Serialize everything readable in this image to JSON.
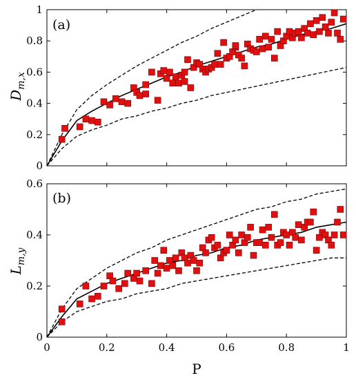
{
  "chart_data": [
    {
      "type": "scatter",
      "panel_label": "(a)",
      "ylabel": "D_{m,x}",
      "ylabel_main": "D",
      "ylabel_sub": "m,x",
      "xlim": [
        0,
        1
      ],
      "ylim": [
        0,
        1
      ],
      "x_ticks": [
        "0",
        "0.2",
        "0.4",
        "0.6",
        "0.8",
        "1"
      ],
      "y_ticks": [
        "0",
        "0.2",
        "0.4",
        "0.6",
        "0.8",
        "1"
      ],
      "x_tick_values": [
        0,
        0.2,
        0.4,
        0.6,
        0.8,
        1
      ],
      "y_tick_values": [
        0,
        0.2,
        0.4,
        0.6,
        0.8,
        1
      ],
      "show_x_tick_labels": false,
      "grid": false,
      "marker_color": "#e01010",
      "points": {
        "x": [
          0.05,
          0.06,
          0.11,
          0.13,
          0.15,
          0.17,
          0.19,
          0.21,
          0.23,
          0.25,
          0.27,
          0.29,
          0.3,
          0.31,
          0.33,
          0.33,
          0.35,
          0.37,
          0.38,
          0.39,
          0.4,
          0.41,
          0.42,
          0.43,
          0.44,
          0.45,
          0.46,
          0.46,
          0.47,
          0.48,
          0.49,
          0.5,
          0.51,
          0.52,
          0.53,
          0.54,
          0.55,
          0.56,
          0.57,
          0.58,
          0.59,
          0.6,
          0.61,
          0.62,
          0.63,
          0.63,
          0.64,
          0.65,
          0.66,
          0.67,
          0.68,
          0.69,
          0.7,
          0.71,
          0.72,
          0.73,
          0.74,
          0.75,
          0.76,
          0.77,
          0.78,
          0.79,
          0.8,
          0.81,
          0.82,
          0.83,
          0.84,
          0.85,
          0.86,
          0.87,
          0.88,
          0.89,
          0.9,
          0.91,
          0.92,
          0.93,
          0.94,
          0.95,
          0.96,
          0.97,
          0.98,
          0.99
        ],
        "y": [
          0.17,
          0.24,
          0.25,
          0.3,
          0.29,
          0.28,
          0.41,
          0.39,
          0.43,
          0.41,
          0.4,
          0.5,
          0.47,
          0.45,
          0.46,
          0.52,
          0.6,
          0.42,
          0.59,
          0.61,
          0.56,
          0.6,
          0.53,
          0.57,
          0.53,
          0.58,
          0.54,
          0.6,
          0.68,
          0.5,
          0.63,
          0.66,
          0.65,
          0.62,
          0.6,
          0.62,
          0.63,
          0.65,
          0.72,
          0.65,
          0.79,
          0.69,
          0.7,
          0.73,
          0.76,
          0.77,
          0.71,
          0.69,
          0.64,
          0.78,
          0.75,
          0.74,
          0.73,
          0.81,
          0.75,
          0.83,
          0.76,
          0.81,
          0.69,
          0.86,
          0.77,
          0.8,
          0.83,
          0.86,
          0.82,
          0.85,
          0.86,
          0.82,
          0.88,
          0.85,
          0.91,
          0.84,
          0.93,
          0.86,
          0.95,
          0.89,
          0.85,
          0.92,
          0.98,
          0.85,
          0.81,
          0.94
        ]
      },
      "fit_line": {
        "x": [
          0,
          0.05,
          0.1,
          0.15,
          0.2,
          0.25,
          0.3,
          0.35,
          0.4,
          0.45,
          0.5,
          0.55,
          0.6,
          0.65,
          0.7,
          0.75,
          0.8,
          0.85,
          0.9,
          0.95,
          1.0
        ],
        "y": [
          0,
          0.16,
          0.29,
          0.35,
          0.4,
          0.45,
          0.49,
          0.53,
          0.57,
          0.6,
          0.64,
          0.67,
          0.7,
          0.73,
          0.76,
          0.78,
          0.81,
          0.84,
          0.86,
          0.88,
          0.91
        ]
      },
      "upper_bound": {
        "x": [
          0,
          0.05,
          0.1,
          0.15,
          0.2,
          0.25,
          0.3,
          0.35,
          0.4,
          0.45,
          0.5,
          0.55,
          0.6,
          0.65,
          0.7
        ],
        "y": [
          0,
          0.2,
          0.36,
          0.45,
          0.52,
          0.58,
          0.64,
          0.69,
          0.74,
          0.79,
          0.83,
          0.88,
          0.92,
          0.96,
          1.0
        ]
      },
      "lower_bound": {
        "x": [
          0,
          0.05,
          0.1,
          0.15,
          0.2,
          0.25,
          0.3,
          0.35,
          0.4,
          0.45,
          0.5,
          0.55,
          0.6,
          0.65,
          0.7,
          0.75,
          0.8,
          0.85,
          0.9,
          0.95,
          1.0
        ],
        "y": [
          0,
          0.11,
          0.19,
          0.23,
          0.26,
          0.3,
          0.32,
          0.35,
          0.37,
          0.4,
          0.42,
          0.45,
          0.47,
          0.49,
          0.51,
          0.53,
          0.55,
          0.57,
          0.59,
          0.61,
          0.63
        ]
      }
    },
    {
      "type": "scatter",
      "panel_label": "(b)",
      "ylabel": "L_{m,y}",
      "ylabel_main": "L",
      "ylabel_sub": "m,y",
      "xlabel": "P",
      "xlim": [
        0,
        1
      ],
      "ylim": [
        0,
        0.6
      ],
      "x_ticks": [
        "0",
        "0.2",
        "0.4",
        "0.6",
        "0.8",
        "1"
      ],
      "y_ticks": [
        "0",
        "0.2",
        "0.4",
        "0.6"
      ],
      "x_tick_values": [
        0,
        0.2,
        0.4,
        0.6,
        0.8,
        1
      ],
      "y_tick_values": [
        0,
        0.2,
        0.4,
        0.6
      ],
      "show_x_tick_labels": true,
      "grid": false,
      "marker_color": "#e01010",
      "points": {
        "x": [
          0.05,
          0.05,
          0.11,
          0.13,
          0.15,
          0.17,
          0.19,
          0.21,
          0.22,
          0.24,
          0.26,
          0.27,
          0.29,
          0.3,
          0.31,
          0.33,
          0.35,
          0.36,
          0.37,
          0.38,
          0.39,
          0.4,
          0.41,
          0.42,
          0.43,
          0.44,
          0.45,
          0.46,
          0.47,
          0.48,
          0.49,
          0.5,
          0.51,
          0.52,
          0.53,
          0.54,
          0.55,
          0.56,
          0.57,
          0.58,
          0.59,
          0.6,
          0.61,
          0.62,
          0.63,
          0.64,
          0.65,
          0.66,
          0.67,
          0.68,
          0.69,
          0.7,
          0.71,
          0.72,
          0.73,
          0.74,
          0.75,
          0.76,
          0.77,
          0.78,
          0.79,
          0.8,
          0.81,
          0.82,
          0.83,
          0.84,
          0.85,
          0.86,
          0.87,
          0.88,
          0.89,
          0.9,
          0.91,
          0.92,
          0.93,
          0.94,
          0.95,
          0.96,
          0.97,
          0.98,
          0.99
        ],
        "y": [
          0.06,
          0.11,
          0.13,
          0.2,
          0.15,
          0.16,
          0.2,
          0.24,
          0.22,
          0.19,
          0.21,
          0.25,
          0.23,
          0.25,
          0.22,
          0.26,
          0.21,
          0.3,
          0.25,
          0.28,
          0.34,
          0.27,
          0.3,
          0.28,
          0.31,
          0.26,
          0.33,
          0.31,
          0.29,
          0.32,
          0.3,
          0.26,
          0.29,
          0.35,
          0.33,
          0.38,
          0.39,
          0.35,
          0.36,
          0.31,
          0.33,
          0.34,
          0.4,
          0.36,
          0.38,
          0.33,
          0.4,
          0.37,
          0.39,
          0.43,
          0.32,
          0.37,
          0.37,
          0.42,
          0.36,
          0.43,
          0.39,
          0.48,
          0.36,
          0.37,
          0.41,
          0.4,
          0.36,
          0.41,
          0.39,
          0.44,
          0.38,
          0.43,
          0.45,
          0.45,
          0.49,
          0.34,
          0.39,
          0.41,
          0.4,
          0.38,
          0.36,
          0.4,
          0.45,
          0.5,
          0.4
        ]
      },
      "fit_line": {
        "x": [
          0,
          0.05,
          0.1,
          0.15,
          0.2,
          0.25,
          0.3,
          0.35,
          0.4,
          0.45,
          0.5,
          0.55,
          0.6,
          0.65,
          0.7,
          0.75,
          0.8,
          0.85,
          0.9,
          0.95,
          1.0
        ],
        "y": [
          0,
          0.08,
          0.15,
          0.18,
          0.21,
          0.23,
          0.25,
          0.27,
          0.29,
          0.3,
          0.32,
          0.33,
          0.35,
          0.36,
          0.38,
          0.39,
          0.4,
          0.41,
          0.43,
          0.44,
          0.45
        ]
      },
      "upper_bound": {
        "x": [
          0,
          0.05,
          0.1,
          0.15,
          0.2,
          0.25,
          0.3,
          0.35,
          0.4,
          0.45,
          0.5,
          0.55,
          0.6,
          0.65,
          0.7,
          0.75,
          0.8,
          0.85,
          0.9,
          0.95,
          1.0
        ],
        "y": [
          0,
          0.11,
          0.19,
          0.23,
          0.27,
          0.3,
          0.33,
          0.35,
          0.38,
          0.4,
          0.42,
          0.44,
          0.46,
          0.48,
          0.5,
          0.51,
          0.53,
          0.54,
          0.56,
          0.57,
          0.58
        ]
      },
      "lower_bound": {
        "x": [
          0,
          0.05,
          0.1,
          0.15,
          0.2,
          0.25,
          0.3,
          0.35,
          0.4,
          0.45,
          0.5,
          0.55,
          0.6,
          0.65,
          0.7,
          0.75,
          0.8,
          0.85,
          0.9,
          0.95,
          1.0
        ],
        "y": [
          0,
          0.06,
          0.1,
          0.12,
          0.14,
          0.15,
          0.17,
          0.18,
          0.19,
          0.21,
          0.22,
          0.23,
          0.24,
          0.25,
          0.26,
          0.27,
          0.28,
          0.29,
          0.3,
          0.31,
          0.31
        ]
      }
    }
  ]
}
